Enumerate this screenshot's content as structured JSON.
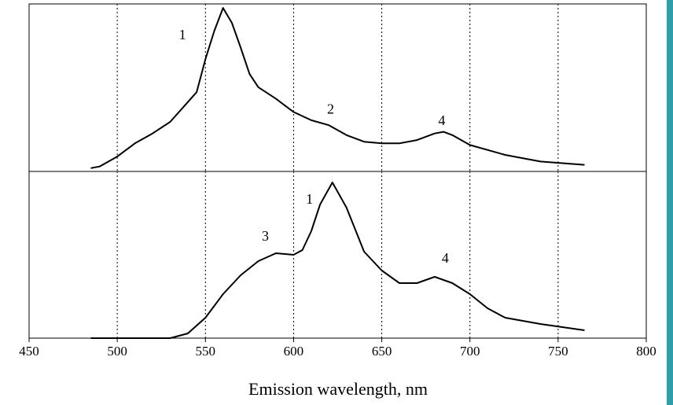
{
  "chart_data": [
    {
      "type": "line",
      "color": "#000000",
      "grid": true,
      "xlim": [
        450,
        800
      ],
      "ylim": [
        0,
        1
      ],
      "x": [
        485,
        490,
        500,
        510,
        520,
        530,
        540,
        545,
        550,
        555,
        560,
        565,
        570,
        575,
        580,
        590,
        600,
        610,
        620,
        630,
        640,
        650,
        660,
        670,
        680,
        685,
        690,
        700,
        720,
        740,
        765
      ],
      "values": [
        0.02,
        0.03,
        0.09,
        0.17,
        0.23,
        0.3,
        0.42,
        0.48,
        0.68,
        0.85,
        0.99,
        0.9,
        0.75,
        0.59,
        0.51,
        0.44,
        0.36,
        0.31,
        0.28,
        0.22,
        0.18,
        0.17,
        0.17,
        0.19,
        0.23,
        0.24,
        0.22,
        0.16,
        0.1,
        0.06,
        0.04
      ],
      "annotations": [
        {
          "text": "1",
          "x": 537,
          "y": 0.82
        },
        {
          "text": "2",
          "x": 621,
          "y": 0.37
        },
        {
          "text": "4",
          "x": 684,
          "y": 0.3
        }
      ]
    },
    {
      "type": "line",
      "color": "#000000",
      "grid": true,
      "xlim": [
        450,
        800
      ],
      "ylim": [
        0,
        1
      ],
      "xticks": [
        450,
        500,
        550,
        600,
        650,
        700,
        750,
        800
      ],
      "xlabel": "Emission wavelength, nm",
      "x": [
        485,
        530,
        540,
        550,
        560,
        570,
        580,
        590,
        600,
        605,
        610,
        615,
        622,
        630,
        640,
        650,
        660,
        670,
        680,
        690,
        700,
        710,
        720,
        740,
        765
      ],
      "values": [
        0,
        0,
        0.03,
        0.13,
        0.28,
        0.4,
        0.49,
        0.54,
        0.53,
        0.56,
        0.68,
        0.85,
        0.99,
        0.83,
        0.55,
        0.43,
        0.35,
        0.35,
        0.39,
        0.35,
        0.28,
        0.19,
        0.13,
        0.09,
        0.05
      ],
      "annotations": [
        {
          "text": "3",
          "x": 584,
          "y": 0.64
        },
        {
          "text": "1",
          "x": 609,
          "y": 0.875
        },
        {
          "text": "4",
          "x": 686,
          "y": 0.5
        }
      ]
    }
  ]
}
